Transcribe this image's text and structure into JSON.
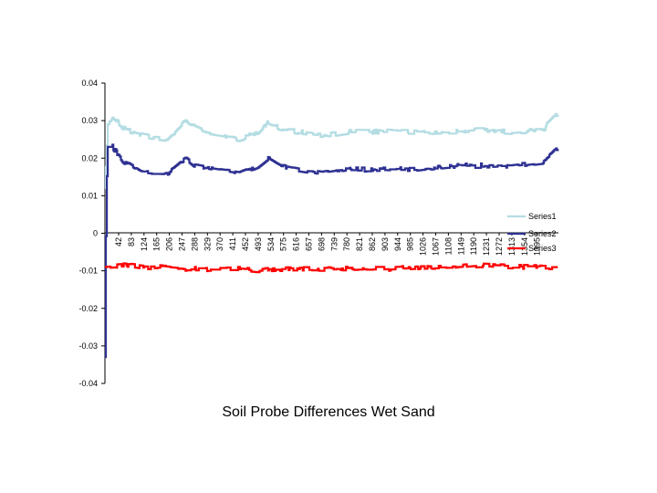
{
  "chart_data": {
    "type": "line",
    "title": "Soil Probe Differences Wet Sand",
    "xlabel": "",
    "ylabel": "",
    "ylim": [
      -0.04,
      0.04
    ],
    "yticks": [
      0.04,
      0.03,
      0.02,
      0.01,
      0,
      -0.01,
      -0.02,
      -0.03,
      -0.04
    ],
    "ytick_labels": [
      "0.04",
      "0.03",
      "0.02",
      "0.01",
      "0",
      "-0.01",
      "-0.02",
      "-0.03",
      "-0.04"
    ],
    "x_count": 1452,
    "x_tick_labels": [
      "42",
      "83",
      "124",
      "165",
      "206",
      "247",
      "288",
      "329",
      "370",
      "411",
      "452",
      "493",
      "534",
      "575",
      "616",
      "657",
      "698",
      "739",
      "780",
      "821",
      "862",
      "903",
      "944",
      "985",
      "1026",
      "1067",
      "1108",
      "1149",
      "1190",
      "1231",
      "1272",
      "1313",
      "1354",
      "1395"
    ],
    "legend": "right",
    "series": [
      {
        "name": "Series1",
        "color": "#b4dde3",
        "base": 0.027,
        "keypoints": [
          [
            1,
            0.012
          ],
          [
            10,
            0.029
          ],
          [
            25,
            0.031
          ],
          [
            60,
            0.028
          ],
          [
            120,
            0.026
          ],
          [
            200,
            0.025
          ],
          [
            240,
            0.028
          ],
          [
            260,
            0.03
          ],
          [
            290,
            0.028
          ],
          [
            350,
            0.026
          ],
          [
            430,
            0.025
          ],
          [
            490,
            0.027
          ],
          [
            520,
            0.0295
          ],
          [
            560,
            0.028
          ],
          [
            620,
            0.027
          ],
          [
            700,
            0.026
          ],
          [
            780,
            0.027
          ],
          [
            900,
            0.027
          ],
          [
            1000,
            0.027
          ],
          [
            1050,
            0.027
          ],
          [
            1120,
            0.027
          ],
          [
            1200,
            0.0275
          ],
          [
            1300,
            0.027
          ],
          [
            1400,
            0.0275
          ],
          [
            1430,
            0.03
          ],
          [
            1452,
            0.032
          ]
        ]
      },
      {
        "name": "Series2",
        "color": "#2e3192",
        "base": 0.018,
        "keypoints": [
          [
            1,
            -0.033
          ],
          [
            5,
            0.01
          ],
          [
            10,
            0.023
          ],
          [
            25,
            0.023
          ],
          [
            60,
            0.019
          ],
          [
            120,
            0.016
          ],
          [
            200,
            0.016
          ],
          [
            240,
            0.019
          ],
          [
            260,
            0.02
          ],
          [
            290,
            0.018
          ],
          [
            350,
            0.017
          ],
          [
            430,
            0.016
          ],
          [
            490,
            0.018
          ],
          [
            520,
            0.02
          ],
          [
            560,
            0.018
          ],
          [
            620,
            0.017
          ],
          [
            700,
            0.016
          ],
          [
            780,
            0.017
          ],
          [
            900,
            0.017
          ],
          [
            1000,
            0.017
          ],
          [
            1050,
            0.0175
          ],
          [
            1120,
            0.018
          ],
          [
            1200,
            0.018
          ],
          [
            1300,
            0.018
          ],
          [
            1400,
            0.019
          ],
          [
            1430,
            0.021
          ],
          [
            1452,
            0.023
          ]
        ]
      },
      {
        "name": "Series3",
        "color": "#ff0000",
        "base": -0.009,
        "keypoints": [
          [
            1,
            -0.009
          ],
          [
            60,
            -0.0085
          ],
          [
            120,
            -0.009
          ],
          [
            200,
            -0.009
          ],
          [
            260,
            -0.0095
          ],
          [
            350,
            -0.0095
          ],
          [
            430,
            -0.0095
          ],
          [
            490,
            -0.01
          ],
          [
            560,
            -0.0095
          ],
          [
            620,
            -0.0095
          ],
          [
            700,
            -0.0095
          ],
          [
            780,
            -0.0095
          ],
          [
            900,
            -0.0095
          ],
          [
            1000,
            -0.009
          ],
          [
            1050,
            -0.009
          ],
          [
            1120,
            -0.009
          ],
          [
            1200,
            -0.0085
          ],
          [
            1300,
            -0.009
          ],
          [
            1400,
            -0.009
          ],
          [
            1452,
            -0.009
          ]
        ]
      }
    ]
  }
}
